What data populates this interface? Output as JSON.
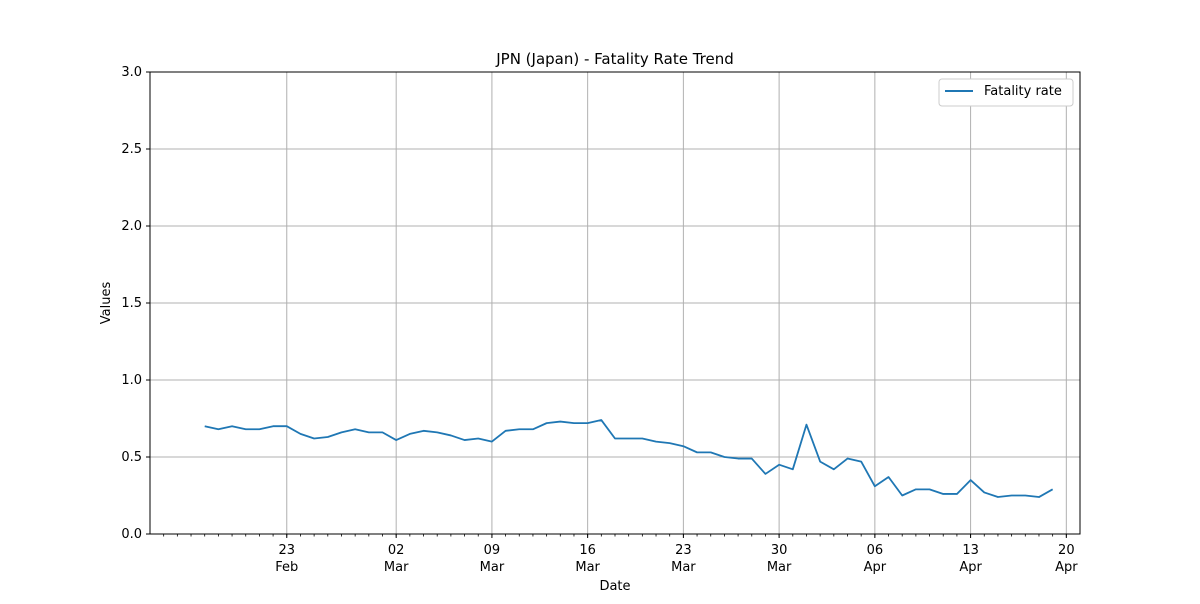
{
  "chart_data": {
    "type": "line",
    "title": "JPN (Japan) - Fatality Rate Trend",
    "xlabel": "Date",
    "ylabel": "Values",
    "xlim": [
      "2020-02-13",
      "2020-04-21"
    ],
    "ylim": [
      0,
      3.0
    ],
    "grid": true,
    "legend_position": "top-right",
    "line_color": "#1f77b4",
    "x_major_ticks": [
      {
        "date": "2020-02-23",
        "day": "23",
        "month": "Feb"
      },
      {
        "date": "2020-03-02",
        "day": "02",
        "month": "Mar"
      },
      {
        "date": "2020-03-09",
        "day": "09",
        "month": "Mar"
      },
      {
        "date": "2020-03-16",
        "day": "16",
        "month": "Mar"
      },
      {
        "date": "2020-03-23",
        "day": "23",
        "month": "Mar"
      },
      {
        "date": "2020-03-30",
        "day": "30",
        "month": "Mar"
      },
      {
        "date": "2020-04-06",
        "day": "06",
        "month": "Apr"
      },
      {
        "date": "2020-04-13",
        "day": "13",
        "month": "Apr"
      },
      {
        "date": "2020-04-20",
        "day": "20",
        "month": "Apr"
      }
    ],
    "y_ticks": [
      "0.0",
      "0.5",
      "1.0",
      "1.5",
      "2.0",
      "2.5",
      "3.0"
    ],
    "series": [
      {
        "name": "Fatality rate",
        "x": [
          "2020-02-17",
          "2020-02-18",
          "2020-02-19",
          "2020-02-20",
          "2020-02-21",
          "2020-02-22",
          "2020-02-23",
          "2020-02-24",
          "2020-02-25",
          "2020-02-26",
          "2020-02-27",
          "2020-02-28",
          "2020-02-29",
          "2020-03-01",
          "2020-03-02",
          "2020-03-03",
          "2020-03-04",
          "2020-03-05",
          "2020-03-06",
          "2020-03-07",
          "2020-03-08",
          "2020-03-09",
          "2020-03-10",
          "2020-03-11",
          "2020-03-12",
          "2020-03-13",
          "2020-03-14",
          "2020-03-15",
          "2020-03-16",
          "2020-03-17",
          "2020-03-18",
          "2020-03-19",
          "2020-03-20",
          "2020-03-21",
          "2020-03-22",
          "2020-03-23",
          "2020-03-24",
          "2020-03-25",
          "2020-03-26",
          "2020-03-27",
          "2020-03-28",
          "2020-03-29",
          "2020-03-30",
          "2020-03-31",
          "2020-04-01",
          "2020-04-02",
          "2020-04-03",
          "2020-04-04",
          "2020-04-05",
          "2020-04-06",
          "2020-04-07",
          "2020-04-08",
          "2020-04-09",
          "2020-04-10",
          "2020-04-11",
          "2020-04-12",
          "2020-04-13",
          "2020-04-14",
          "2020-04-15",
          "2020-04-16",
          "2020-04-17",
          "2020-04-18",
          "2020-04-19"
        ],
        "y": [
          0.7,
          0.68,
          0.7,
          0.68,
          0.68,
          0.7,
          0.7,
          0.65,
          0.62,
          0.63,
          0.66,
          0.68,
          0.66,
          0.66,
          0.61,
          0.65,
          0.67,
          0.66,
          0.64,
          0.61,
          0.62,
          0.6,
          0.67,
          0.68,
          0.68,
          0.72,
          0.73,
          0.72,
          0.72,
          0.74,
          0.62,
          0.62,
          0.62,
          0.6,
          0.59,
          0.57,
          0.53,
          0.53,
          0.5,
          0.49,
          0.49,
          0.39,
          0.45,
          0.42,
          0.71,
          0.47,
          0.42,
          0.49,
          0.47,
          0.31,
          0.37,
          0.25,
          0.29,
          0.29,
          0.26,
          0.26,
          0.35,
          0.27,
          0.24,
          0.25,
          0.25,
          0.24,
          0.29
        ]
      }
    ]
  }
}
